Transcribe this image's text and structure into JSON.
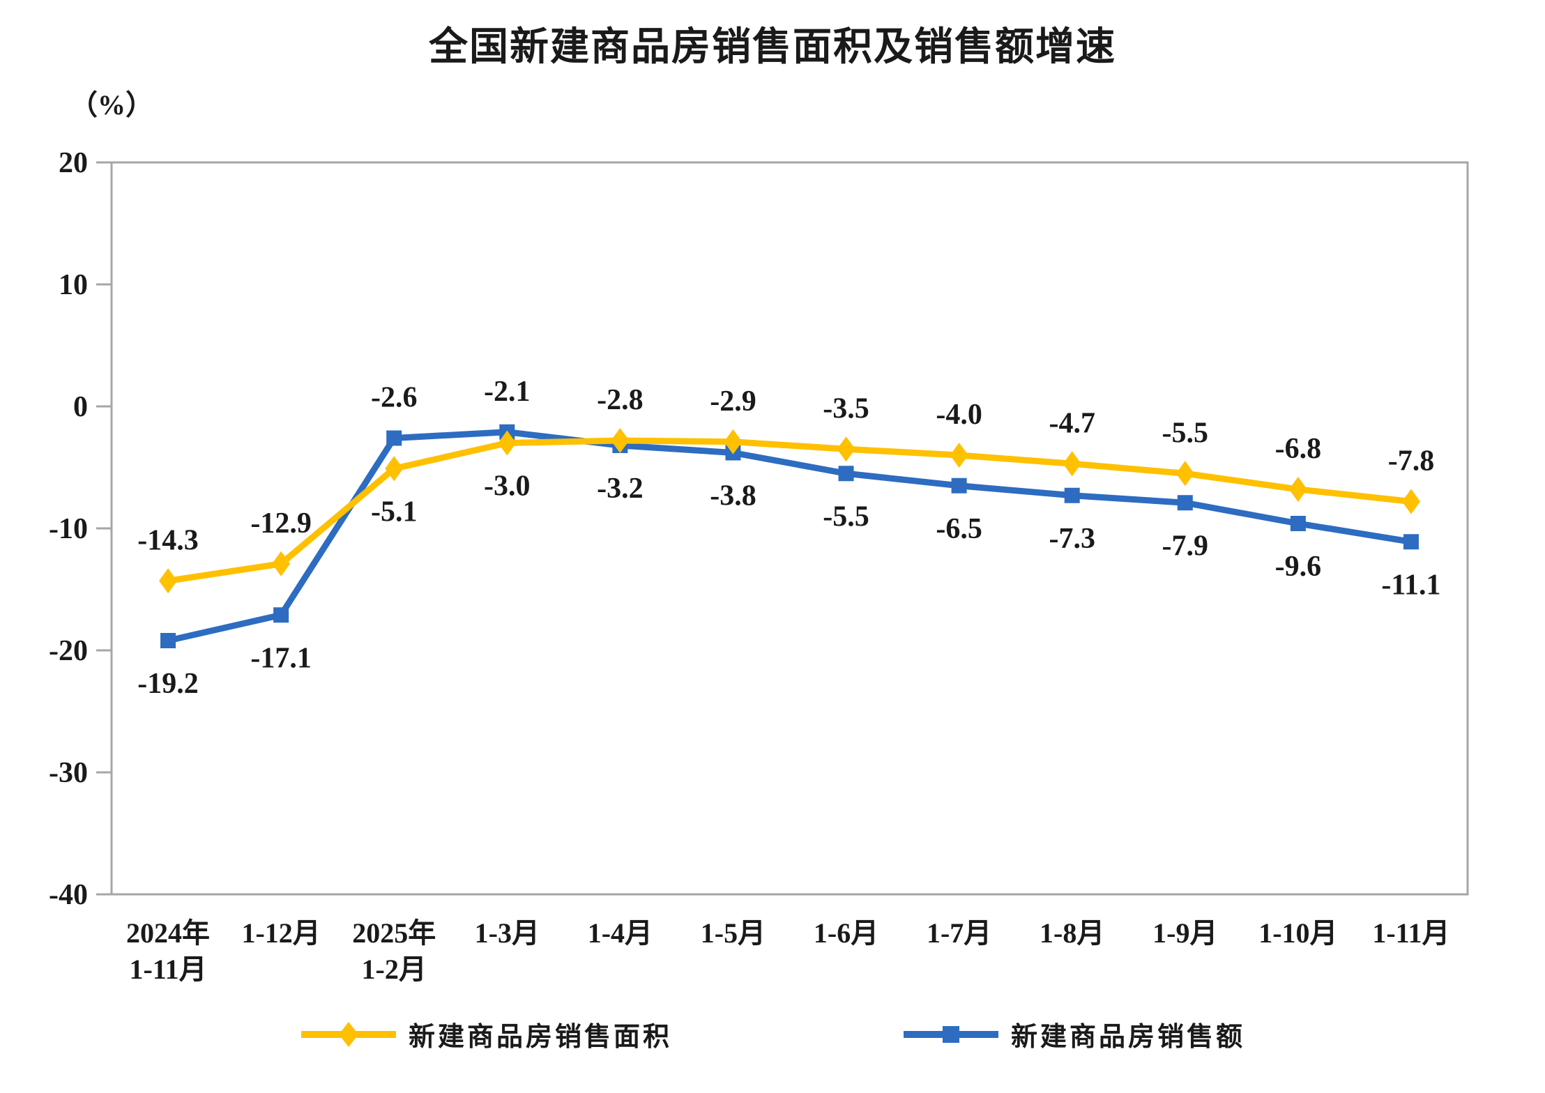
{
  "chart_data": {
    "type": "line",
    "title": "全国新建商品房销售面积及销售额增速",
    "unit_label": "（%）",
    "categories": [
      "2024年\n1-11月",
      "1-12月",
      "2025年\n1-2月",
      "1-3月",
      "1-4月",
      "1-5月",
      "1-6月",
      "1-7月",
      "1-8月",
      "1-9月",
      "1-10月",
      "1-11月"
    ],
    "y_axis": {
      "min": -40,
      "max": 20,
      "tick_step": 10,
      "ticks": [
        20,
        10,
        0,
        -10,
        -20,
        -30,
        -40
      ]
    },
    "grid": false,
    "legend_position": "bottom",
    "axis_color": "#A6A6A6",
    "text_color": "#1A1A1A",
    "series": [
      {
        "name": "新建商品房销售面积",
        "color": "#FFC000",
        "marker": "diamond",
        "values": [
          -14.3,
          -12.9,
          -5.1,
          -3.0,
          -2.8,
          -2.9,
          -3.5,
          -4.0,
          -4.7,
          -5.5,
          -6.8,
          -7.8
        ],
        "point_labels": [
          "-14.3",
          "-12.9",
          "-5.1",
          "-3.0",
          "-2.8",
          "-2.9",
          "-3.5",
          "-4.0",
          "-4.7",
          "-5.5",
          "-6.8",
          "-7.8"
        ],
        "label_side": [
          "above",
          "above",
          "below",
          "below",
          "above",
          "above",
          "above",
          "above",
          "above",
          "above",
          "above",
          "above"
        ]
      },
      {
        "name": "新建商品房销售额",
        "color": "#2D6CC0",
        "marker": "square",
        "values": [
          -19.2,
          -17.1,
          -2.6,
          -2.1,
          -3.2,
          -3.8,
          -5.5,
          -6.5,
          -7.3,
          -7.9,
          -9.6,
          -11.1
        ],
        "point_labels": [
          "-19.2",
          "-17.1",
          "-2.6",
          "-2.1",
          "-3.2",
          "-3.8",
          "-5.5",
          "-6.5",
          "-7.3",
          "-7.9",
          "-9.6",
          "-11.1"
        ],
        "label_side": [
          "below",
          "below",
          "above",
          "above",
          "below",
          "below",
          "below",
          "below",
          "below",
          "below",
          "below",
          "below"
        ]
      }
    ]
  }
}
